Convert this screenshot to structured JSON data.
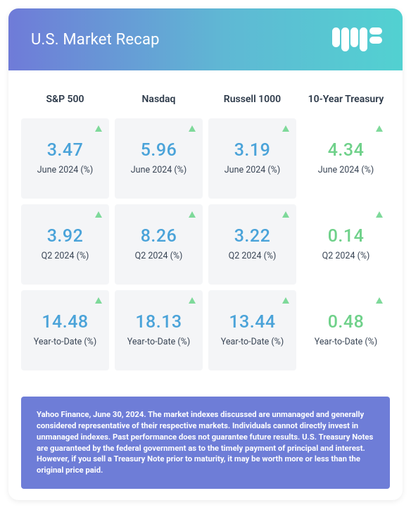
{
  "header": {
    "title": "U.S. Market Recap",
    "background_gradient": [
      "#6f7bd8",
      "#5fb8d4",
      "#52d1d1"
    ],
    "logo_color": "#ffffff"
  },
  "colors": {
    "value_blue": "#4aa3d9",
    "value_green": "#6fd18a",
    "arrow_up_green": "#7ed99a",
    "cell_bg": "#f4f5f7",
    "footer_bg": "#6e7dd7",
    "col_title": "#2d3a4a",
    "period": "#3a4656"
  },
  "columns": [
    {
      "title": "S&P 500",
      "cells": [
        {
          "value": "3.47",
          "period": "June 2024 (%)",
          "direction": "up",
          "value_color": "#4aa3d9"
        },
        {
          "value": "3.92",
          "period": "Q2 2024 (%)",
          "direction": "up",
          "value_color": "#4aa3d9"
        },
        {
          "value": "14.48",
          "period": "Year-to-Date (%)",
          "direction": "up",
          "value_color": "#4aa3d9"
        }
      ]
    },
    {
      "title": "Nasdaq",
      "cells": [
        {
          "value": "5.96",
          "period": "June 2024 (%)",
          "direction": "up",
          "value_color": "#4aa3d9"
        },
        {
          "value": "8.26",
          "period": "Q2 2024 (%)",
          "direction": "up",
          "value_color": "#4aa3d9"
        },
        {
          "value": "18.13",
          "period": "Year-to-Date (%)",
          "direction": "up",
          "value_color": "#4aa3d9"
        }
      ]
    },
    {
      "title": "Russell 1000",
      "cells": [
        {
          "value": "3.19",
          "period": "June 2024 (%)",
          "direction": "up",
          "value_color": "#4aa3d9"
        },
        {
          "value": "3.22",
          "period": "Q2 2024 (%)",
          "direction": "up",
          "value_color": "#4aa3d9"
        },
        {
          "value": "13.44",
          "period": "Year-to-Date (%)",
          "direction": "up",
          "value_color": "#4aa3d9"
        }
      ]
    },
    {
      "title": "10-Year Treasury",
      "cells": [
        {
          "value": "4.34",
          "period": "June 2024 (%)",
          "direction": "up",
          "value_color": "#6fd18a"
        },
        {
          "value": "0.14",
          "period": "Q2 2024 (%)",
          "direction": "up",
          "value_color": "#6fd18a"
        },
        {
          "value": "0.48",
          "period": "Year-to-Date (%)",
          "direction": "up",
          "value_color": "#6fd18a"
        }
      ]
    }
  ],
  "disclaimer": "Yahoo Finance, June 30, 2024. The market indexes discussed are unmanaged and generally considered representative of their respective markets. Individuals cannot directly invest in unmanaged indexes. Past performance does not guarantee future results. U.S. Treasury Notes are guaranteed by the federal government as to the timely payment of principal and interest. However, if you sell a Treasury Note prior to maturity, it may be worth more or less than the original price paid."
}
